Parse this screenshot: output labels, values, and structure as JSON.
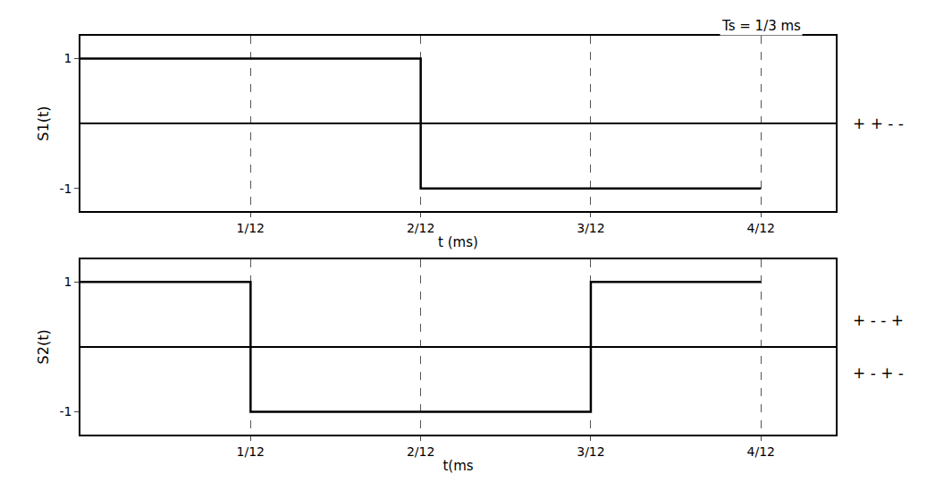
{
  "chart_data": [
    {
      "type": "line",
      "line_style": "step",
      "color": "#000000",
      "grid": true,
      "ylabel": "S1(t)",
      "xlabel": "t (ms)",
      "x": [
        0,
        0.08333,
        0.16667,
        0.25,
        0.33333
      ],
      "values": [
        1,
        1,
        -1,
        -1,
        -1
      ],
      "xlim": [
        0,
        0.37
      ],
      "ylim": [
        -1.35,
        1.35
      ],
      "xticks": [
        {
          "value": 0.08333,
          "label": "1/12"
        },
        {
          "value": 0.16667,
          "label": "2/12"
        },
        {
          "value": 0.25,
          "label": "3/12"
        },
        {
          "value": 0.33333,
          "label": "4/12"
        }
      ],
      "yticks": [
        -1,
        1
      ],
      "annotations": [
        {
          "text": "Ts = 1/3 ms",
          "x": 0.33333
        },
        {
          "text": "+ + - -"
        }
      ]
    },
    {
      "type": "line",
      "line_style": "step",
      "color": "#000000",
      "grid": true,
      "ylabel": "S2(t)",
      "xlabel": "t(ms",
      "x": [
        0,
        0.08333,
        0.16667,
        0.25,
        0.33333
      ],
      "values": [
        1,
        -1,
        -1,
        1,
        1
      ],
      "xlim": [
        0,
        0.37
      ],
      "ylim": [
        -1.35,
        1.35
      ],
      "xticks": [
        {
          "value": 0.08333,
          "label": "1/12"
        },
        {
          "value": 0.16667,
          "label": "2/12"
        },
        {
          "value": 0.25,
          "label": "3/12"
        },
        {
          "value": 0.33333,
          "label": "4/12"
        }
      ],
      "yticks": [
        -1,
        1
      ],
      "annotations": [
        {
          "text": "+ - - +"
        },
        {
          "text": "+ - + -"
        }
      ]
    }
  ]
}
